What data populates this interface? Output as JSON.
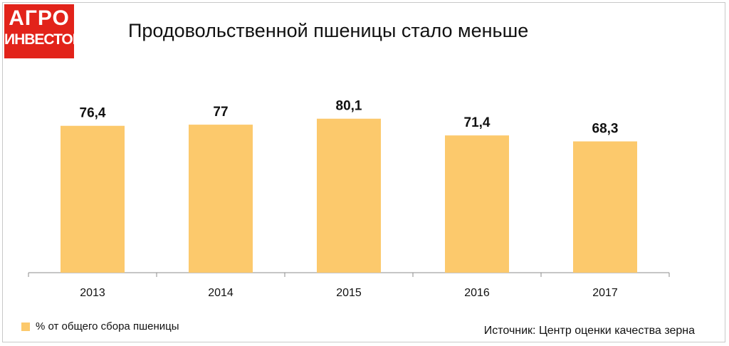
{
  "logo": {
    "line1": "АГРО",
    "line2": "ИНВЕСТОР"
  },
  "colors": {
    "bar": "#fcc96c",
    "logo_bg": "#e2231a",
    "axis": "#8c8c8c"
  },
  "legend": {
    "label": "% от общего сбора пшеницы"
  },
  "source": "Источник: Центр оценки качества зерна",
  "chart_data": {
    "type": "bar",
    "title": "Продовольственной пшеницы стало меньше",
    "categories": [
      "2013",
      "2014",
      "2015",
      "2016",
      "2017"
    ],
    "series": [
      {
        "name": "% от общего сбора пшеницы",
        "values": [
          76.4,
          77,
          80.1,
          71.4,
          68.3
        ]
      }
    ],
    "value_labels": [
      "76,4",
      "77",
      "80,1",
      "71,4",
      "68,3"
    ],
    "ylim": [
      0,
      100
    ],
    "grid": false,
    "legend_position": "bottom-left"
  }
}
